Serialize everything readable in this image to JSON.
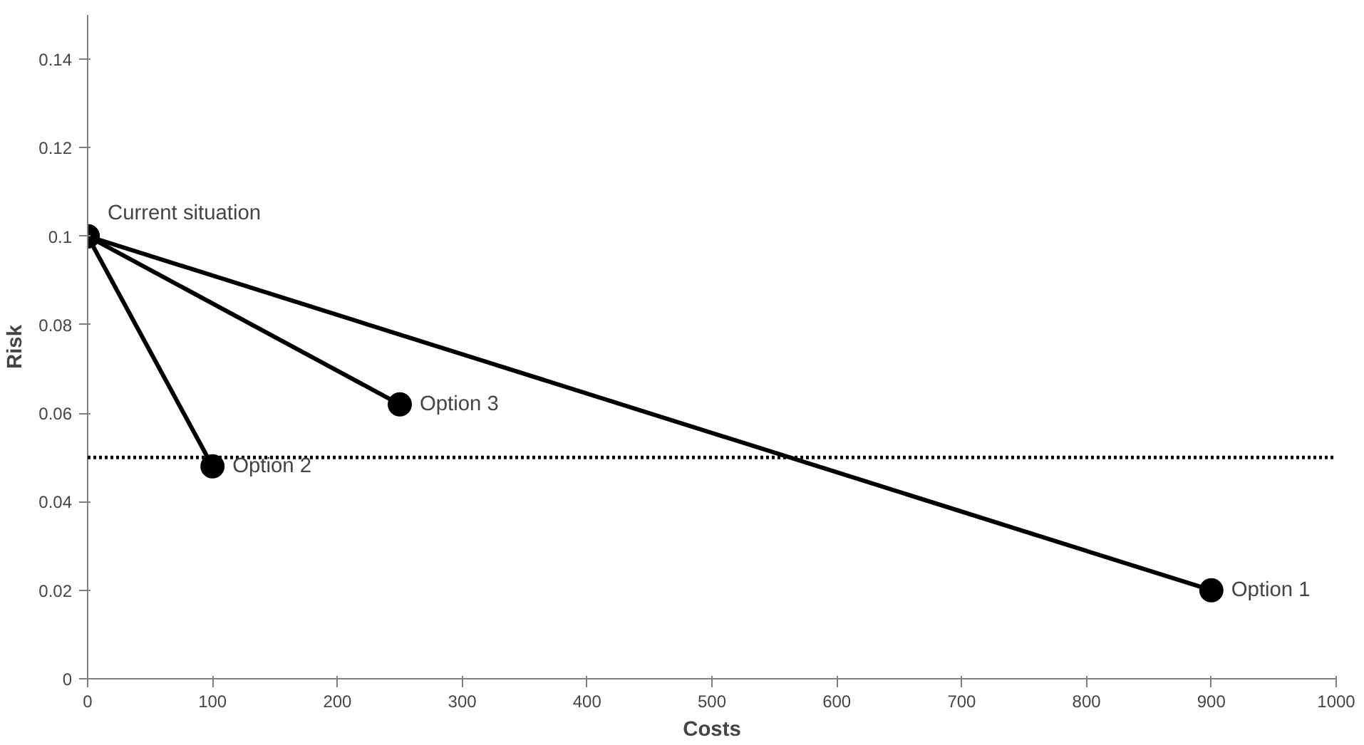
{
  "chart_data": {
    "type": "line",
    "xlabel": "Costs",
    "ylabel": "Risk",
    "xlim": [
      0,
      1000
    ],
    "xticks": [
      0,
      100,
      200,
      300,
      400,
      500,
      600,
      700,
      800,
      900,
      1000
    ],
    "ylim": [
      0,
      0.15
    ],
    "yticks": [
      0,
      0.02,
      0.04,
      0.06,
      0.08,
      0.1,
      0.12,
      0.14
    ],
    "series": [
      {
        "color": "#000000",
        "x": [
          0,
          900
        ],
        "values": [
          0.1,
          0.02
        ]
      },
      {
        "color": "#000000",
        "x": [
          0,
          100
        ],
        "values": [
          0.1,
          0.048
        ]
      },
      {
        "color": "#000000",
        "x": [
          0,
          250
        ],
        "values": [
          0.1,
          0.062
        ]
      }
    ],
    "marker": "circle",
    "line_style": "solid",
    "grid": false,
    "ref_lines": [
      {
        "axis": "y",
        "value": 0.05,
        "color": "#000000",
        "line_style": "dotted"
      }
    ],
    "annotations": [
      {
        "text": "Current situation",
        "x": 0,
        "y": 0.1
      },
      {
        "text": "Option 1",
        "x": 900,
        "y": 0.02
      },
      {
        "text": "Option 2",
        "x": 100,
        "y": 0.048
      },
      {
        "text": "Option 3",
        "x": 250,
        "y": 0.062
      }
    ]
  }
}
